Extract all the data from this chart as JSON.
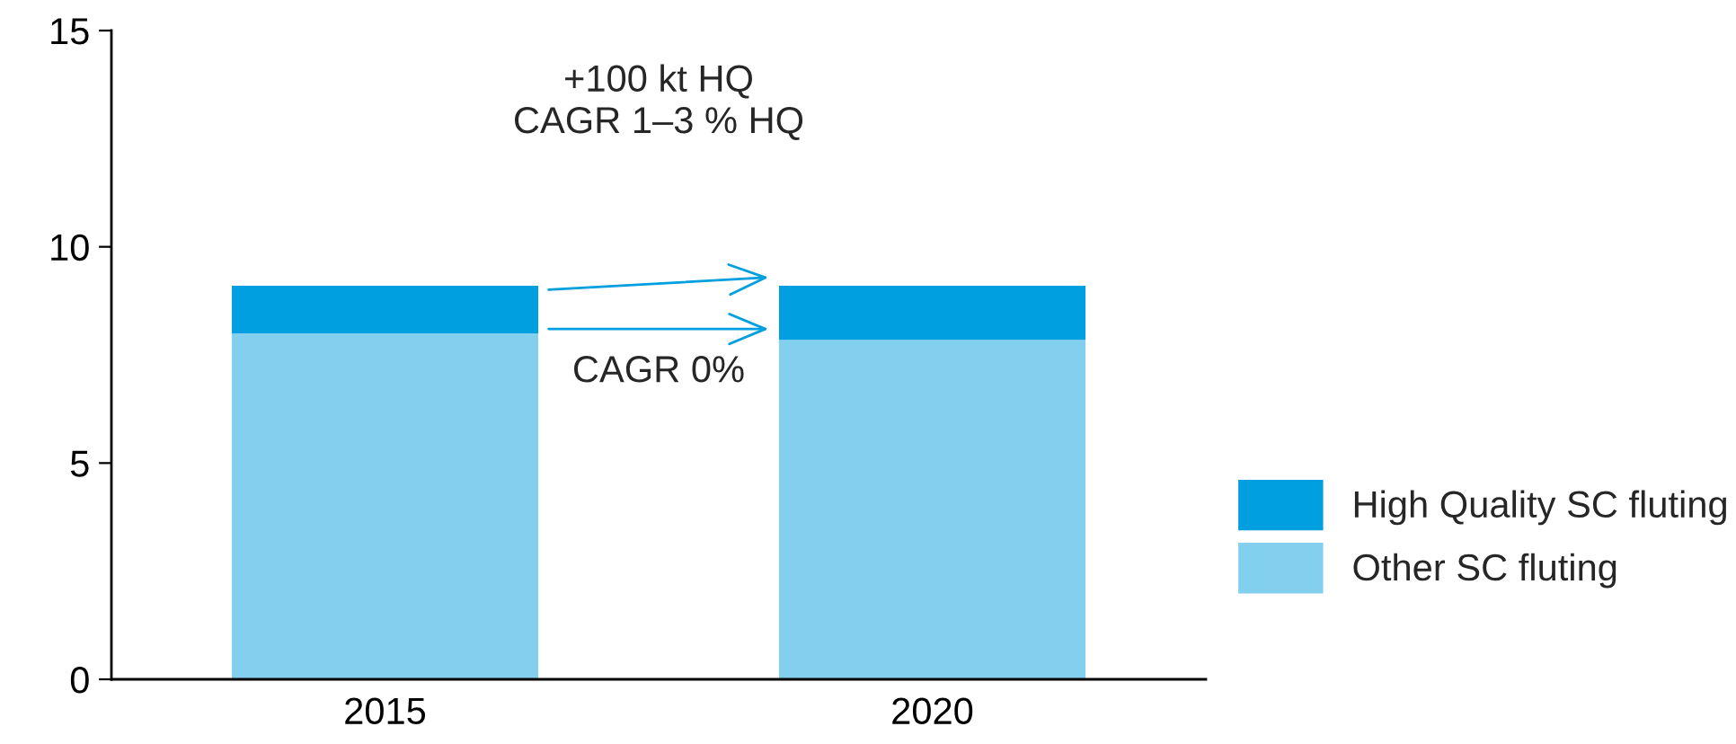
{
  "chart_data": {
    "type": "bar",
    "stacked": true,
    "categories": [
      "2015",
      "2020"
    ],
    "series": [
      {
        "name": "Other SC fluting",
        "color": "#83cfee",
        "values": [
          8.0,
          7.85
        ]
      },
      {
        "name": "High Quality SC fluting",
        "color": "#009fdf",
        "values": [
          1.1,
          1.25
        ]
      }
    ],
    "ylim": [
      0,
      15
    ],
    "yticks": [
      0,
      5,
      10,
      15
    ],
    "grid": false,
    "legend": "right",
    "annotations": [
      "+100 kt HQ\nCAGR 1–3 % HQ",
      "CAGR 0%"
    ]
  }
}
